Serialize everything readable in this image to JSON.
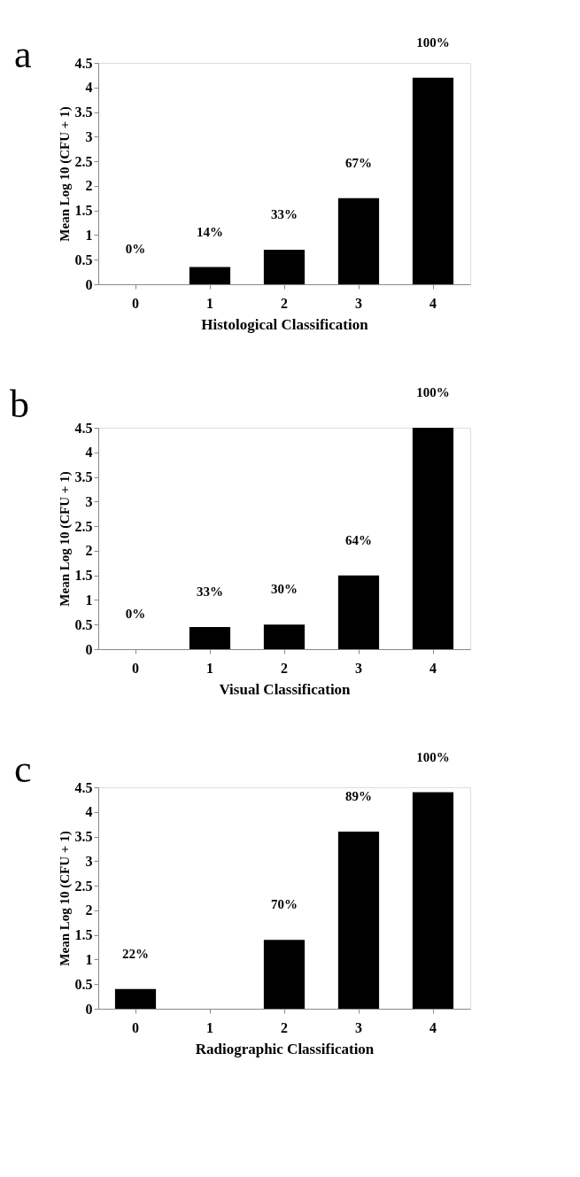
{
  "chart_data": [
    {
      "type": "bar",
      "title": "a",
      "xlabel": "Histological Classification",
      "ylabel": "Mean Log 10 (CFU + 1)",
      "categories": [
        "0",
        "1",
        "2",
        "3",
        "4"
      ],
      "values": [
        0,
        0.35,
        0.7,
        1.75,
        4.2
      ],
      "color": "#000000",
      "ylim": [
        0,
        4.5
      ],
      "yticks": [
        0,
        0.5,
        1,
        1.5,
        2,
        2.5,
        3,
        3.5,
        4,
        4.5
      ],
      "grid": false,
      "annotations": [
        {
          "text": "0%",
          "x": "0",
          "y": 0
        },
        {
          "text": "14%",
          "x": "1",
          "y": 0.35
        },
        {
          "text": "33%",
          "x": "2",
          "y": 0.7
        },
        {
          "text": "67%",
          "x": "3",
          "y": 1.75
        },
        {
          "text": "100%",
          "x": "4",
          "y": 4.2
        }
      ]
    },
    {
      "type": "bar",
      "title": "b",
      "xlabel": "Visual Classification",
      "ylabel": "Mean Log 10 (CFU + 1)",
      "categories": [
        "0",
        "1",
        "2",
        "3",
        "4"
      ],
      "values": [
        0,
        0.45,
        0.5,
        1.5,
        4.5
      ],
      "color": "#000000",
      "ylim": [
        0,
        4.5
      ],
      "yticks": [
        0,
        0.5,
        1,
        1.5,
        2,
        2.5,
        3,
        3.5,
        4,
        4.5
      ],
      "grid": false,
      "annotations": [
        {
          "text": "0%",
          "x": "0",
          "y": 0
        },
        {
          "text": "33%",
          "x": "1",
          "y": 0.45
        },
        {
          "text": "30%",
          "x": "2",
          "y": 0.5
        },
        {
          "text": "64%",
          "x": "3",
          "y": 1.5
        },
        {
          "text": "100%",
          "x": "4",
          "y": 4.5
        }
      ]
    },
    {
      "type": "bar",
      "title": "c",
      "xlabel": "Radiographic Classification",
      "ylabel": "Mean Log 10 (CFU + 1)",
      "categories": [
        "0",
        "1",
        "2",
        "3",
        "4"
      ],
      "values": [
        0.4,
        0,
        1.4,
        3.6,
        4.4
      ],
      "color": "#000000",
      "ylim": [
        0,
        4.5
      ],
      "yticks": [
        0,
        0.5,
        1,
        1.5,
        2,
        2.5,
        3,
        3.5,
        4,
        4.5
      ],
      "grid": false,
      "annotations": [
        {
          "text": "22%",
          "x": "0",
          "y": 0.4
        },
        {
          "text": "70%",
          "x": "2",
          "y": 1.4
        },
        {
          "text": "89%",
          "x": "3",
          "y": 3.6
        },
        {
          "text": "100%",
          "x": "4",
          "y": 4.4
        }
      ]
    }
  ]
}
